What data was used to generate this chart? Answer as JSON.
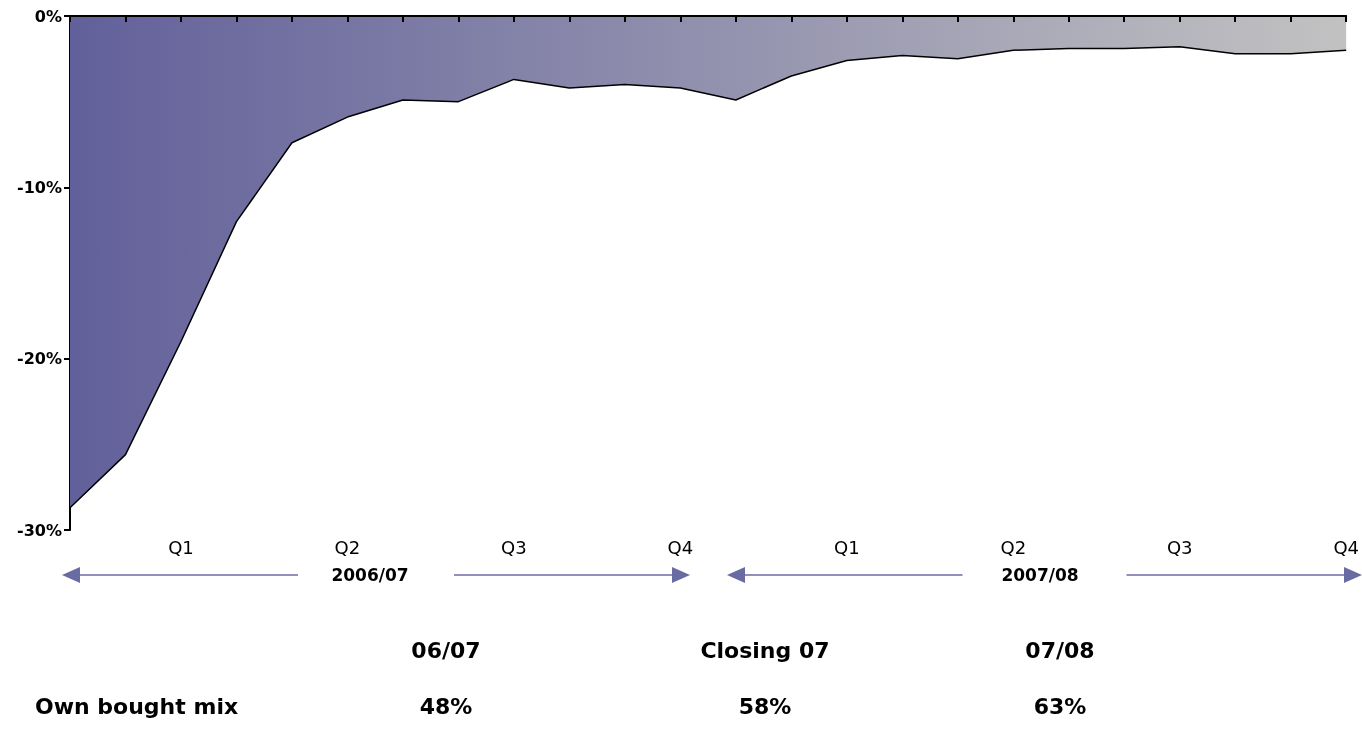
{
  "chart_data": {
    "type": "area",
    "categories": [
      null,
      null,
      "Q1",
      null,
      null,
      "Q2",
      null,
      null,
      "Q3",
      null,
      null,
      "Q4",
      null,
      null,
      "Q1",
      null,
      null,
      "Q2",
      null,
      null,
      "Q3",
      null,
      null,
      "Q4"
    ],
    "series": [
      {
        "color": "#62609a",
        "values": [
          -28.7,
          -25.6,
          -19,
          -12.0,
          -7.4,
          -5.9,
          -4.9,
          -5.0,
          -3.7,
          -4.2,
          -4.0,
          -4.2,
          -4.9,
          -3.5,
          -2.6,
          -2.3,
          -2.5,
          -2.0,
          -1.9,
          -1.9,
          -1.8,
          -2.2,
          -2.2,
          -2.0
        ]
      }
    ],
    "ylim": [
      -30,
      0
    ],
    "yticks": [
      {
        "value": 0,
        "label": "0%"
      },
      {
        "value": -10,
        "label": "-10%"
      },
      {
        "value": -20,
        "label": "-20%"
      },
      {
        "value": -30,
        "label": "-30%"
      }
    ],
    "grid": false,
    "marker": "none",
    "line_style": "solid",
    "annotations": [
      "2006/07",
      "2007/08",
      "06/07",
      "Closing 07",
      "07/08",
      "Own bought mix",
      "48%",
      "58%",
      "63%"
    ]
  }
}
